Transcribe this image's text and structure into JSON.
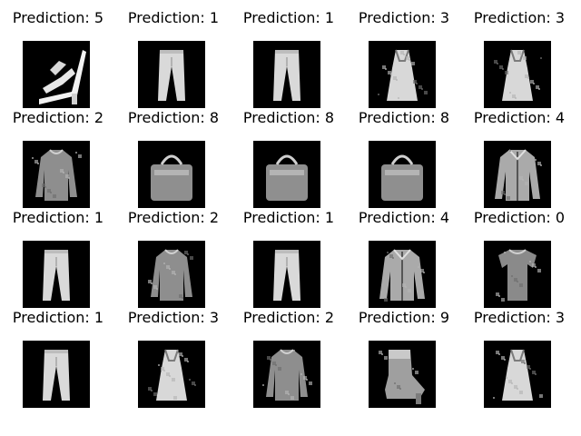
{
  "figure": {
    "background": "#ffffff",
    "image_background": "#000000",
    "image_style": "grayscale fashion item thumbnails",
    "grid": {
      "rows": 4,
      "cols": 5
    }
  },
  "cells": [
    {
      "title": "Prediction: 5",
      "item": "sandal"
    },
    {
      "title": "Prediction: 1",
      "item": "trouser"
    },
    {
      "title": "Prediction: 1",
      "item": "trouser"
    },
    {
      "title": "Prediction: 3",
      "item": "dress"
    },
    {
      "title": "Prediction: 3",
      "item": "dress"
    },
    {
      "title": "Prediction: 2",
      "item": "pullover"
    },
    {
      "title": "Prediction: 8",
      "item": "bag"
    },
    {
      "title": "Prediction: 8",
      "item": "bag"
    },
    {
      "title": "Prediction: 8",
      "item": "bag"
    },
    {
      "title": "Prediction: 4",
      "item": "coat"
    },
    {
      "title": "Prediction: 1",
      "item": "trouser"
    },
    {
      "title": "Prediction: 2",
      "item": "pullover"
    },
    {
      "title": "Prediction: 1",
      "item": "trouser"
    },
    {
      "title": "Prediction: 4",
      "item": "coat"
    },
    {
      "title": "Prediction: 0",
      "item": "t-shirt"
    },
    {
      "title": "Prediction: 1",
      "item": "trouser"
    },
    {
      "title": "Prediction: 3",
      "item": "dress"
    },
    {
      "title": "Prediction: 2",
      "item": "pullover"
    },
    {
      "title": "Prediction: 9",
      "item": "ankle-boot"
    },
    {
      "title": "Prediction: 3",
      "item": "dress"
    }
  ]
}
